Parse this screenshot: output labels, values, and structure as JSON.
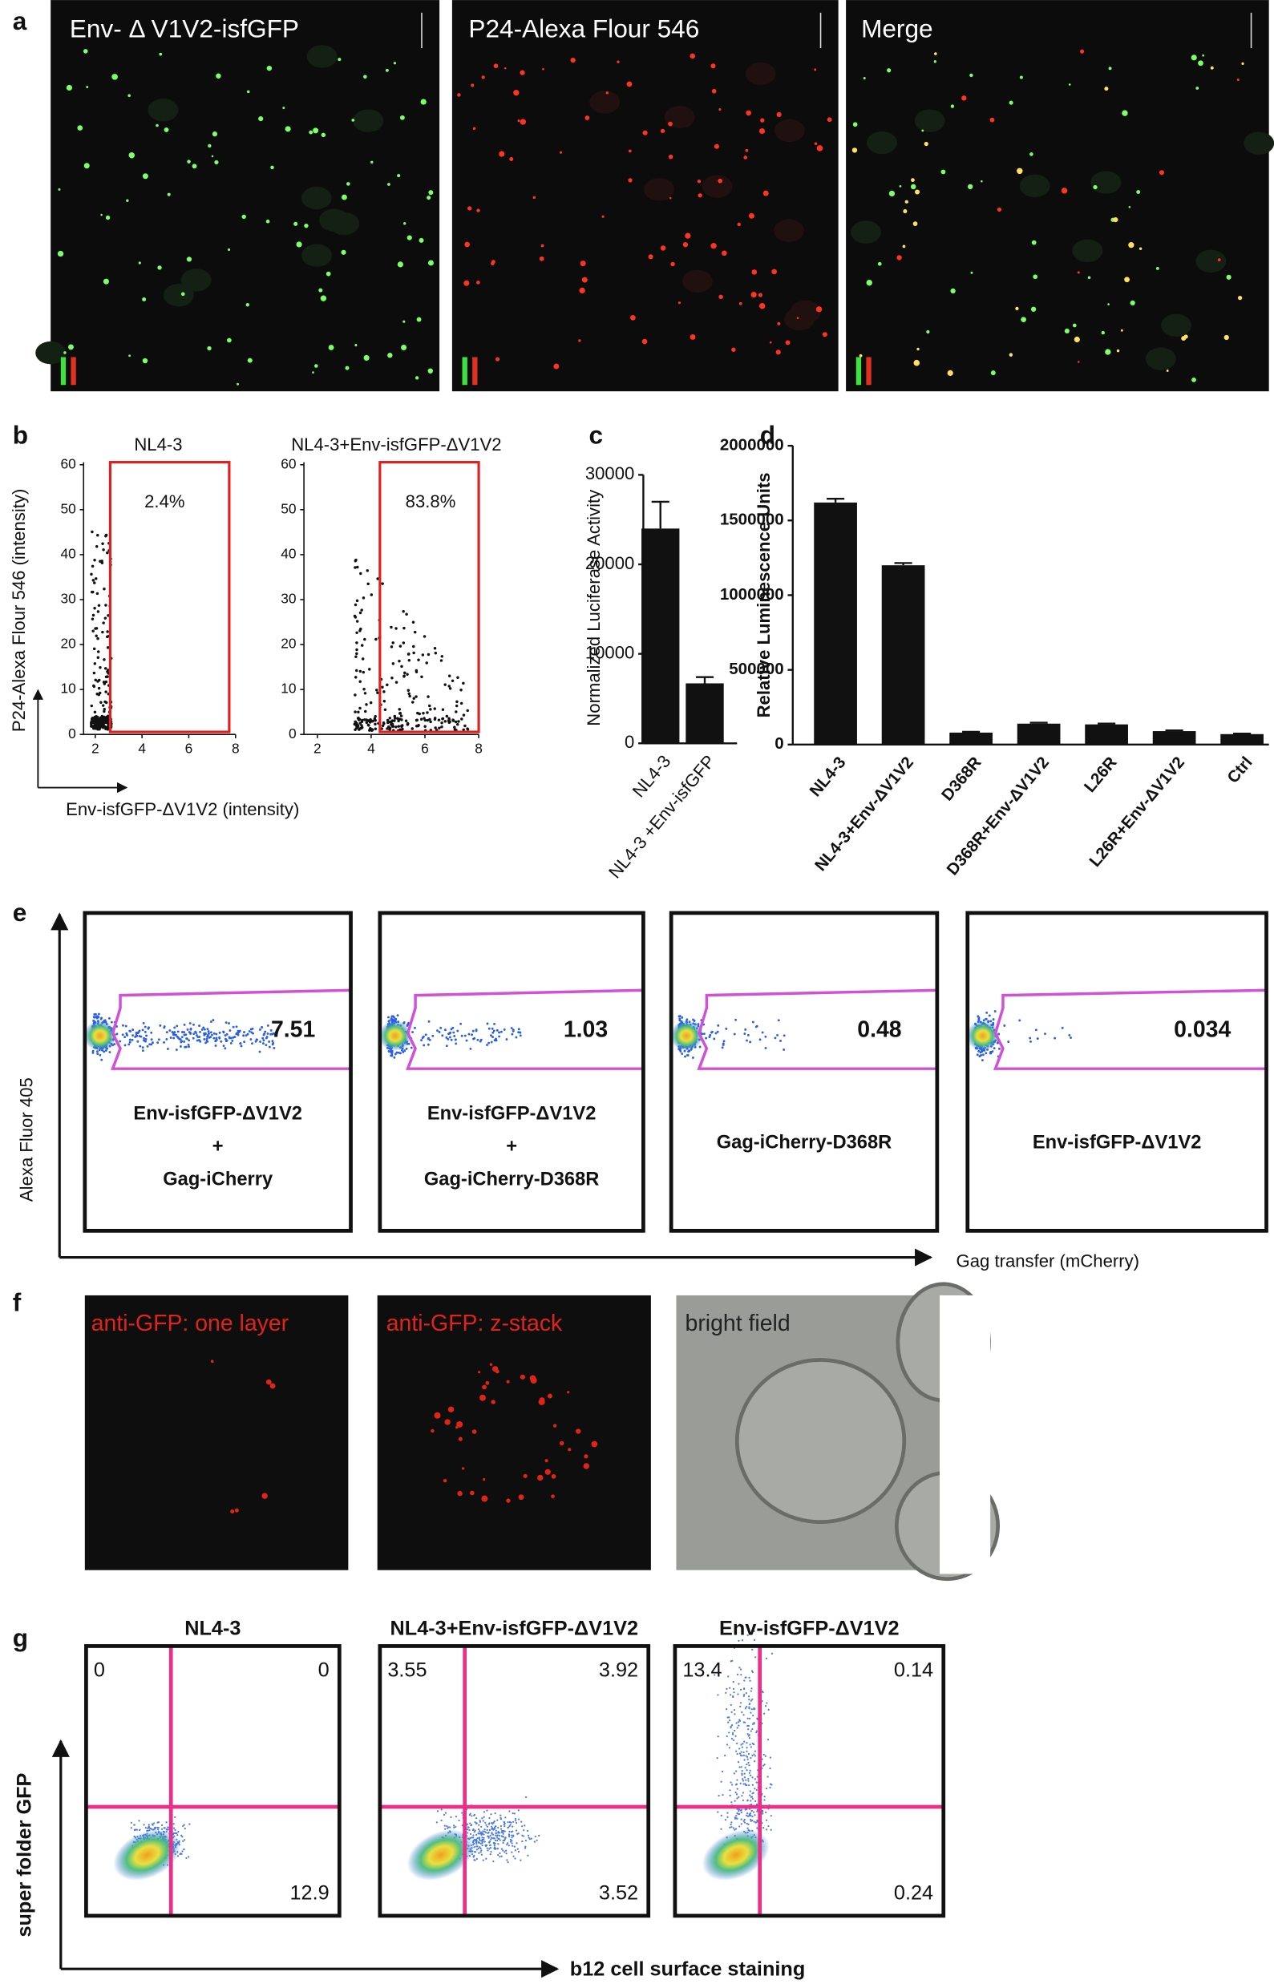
{
  "panel_letters": [
    "a",
    "b",
    "c",
    "d",
    "e",
    "f",
    "g"
  ],
  "panel_a": {
    "titles": [
      "Env- Δ V1V2-isfGFP",
      "P24-Alexa Flour 546",
      "Merge"
    ]
  },
  "panel_b": {
    "y_label": "P24-Alexa Flour 546 (intensity)",
    "x_label": "Env-isfGFP-ΔV1V2 (intensity)"
  },
  "chart_data": [
    {
      "type": "scatter",
      "title": "NL4-3",
      "gate_label": "2.4%",
      "xlim": [
        1.5,
        8
      ],
      "xticks": [
        2,
        4,
        6,
        8
      ],
      "ylim": [
        0,
        60
      ],
      "yticks": [
        0,
        10,
        20,
        30,
        40,
        50,
        60
      ],
      "gate_color": "#e02020"
    },
    {
      "type": "scatter",
      "title": "NL4-3+Env-isfGFP-ΔV1V2",
      "gate_label": "83.8%",
      "xlim": [
        1.5,
        8
      ],
      "xticks": [
        2,
        4,
        6,
        8
      ],
      "ylim": [
        0,
        60
      ],
      "yticks": [
        0,
        10,
        20,
        30,
        40,
        50,
        60
      ],
      "gate_color": "#e02020"
    },
    {
      "type": "bar",
      "y_label": "Normalized Luciferase Activity",
      "categories": [
        "NL4-3",
        "NL4-3 +Env-isfGFP"
      ],
      "values": [
        24000,
        6700
      ],
      "errors": [
        3000,
        700
      ],
      "color": "#111111",
      "ylim": [
        0,
        30000
      ],
      "yticks": [
        0,
        10000,
        20000,
        30000
      ]
    },
    {
      "type": "bar",
      "y_label": "Relative Luminescence Units",
      "categories": [
        "NL4-3",
        "NL4-3+Env-ΔV1V2",
        "D368R",
        "D368R+Env-ΔV1V2",
        "L26R",
        "L26R+Env-ΔV1V2",
        "Ctrl"
      ],
      "values": [
        1620000,
        1200000,
        80000,
        140000,
        135000,
        90000,
        70000
      ],
      "errors": [
        25000,
        15000,
        5000,
        6000,
        5000,
        5000,
        3000
      ],
      "color": "#111111",
      "ylim": [
        0,
        2000000
      ],
      "yticks": [
        0,
        500000,
        1000000,
        1500000,
        2000000
      ]
    }
  ],
  "panel_e": {
    "y_label": "Alexa Fluor 405",
    "x_label": "Gag transfer (mCherry)",
    "plots": [
      {
        "percent": 7.51,
        "lines": [
          "Env-isfGFP-ΔV1V2",
          "+",
          "Gag-iCherry"
        ]
      },
      {
        "percent": 1.03,
        "lines": [
          "Env-isfGFP-ΔV1V2",
          "+",
          "Gag-iCherry-D368R"
        ]
      },
      {
        "percent": 0.48,
        "lines": [
          "Gag-iCherry-D368R"
        ]
      },
      {
        "percent": 0.034,
        "lines": [
          "Env-isfGFP-ΔV1V2"
        ]
      }
    ]
  },
  "panel_f": {
    "titles": [
      "anti-GFP: one layer",
      "anti-GFP: z-stack",
      "bright field"
    ]
  },
  "panel_g": {
    "y_label": "super folder GFP",
    "x_label": "b12 cell surface staining",
    "plots": [
      {
        "title": "NL4-3",
        "upper_left": 0,
        "upper_right": 0,
        "lower_right": 12.9
      },
      {
        "title": "NL4-3+Env-isfGFP-ΔV1V2",
        "upper_left": 3.55,
        "upper_right": 3.92,
        "lower_right": 3.52
      },
      {
        "title": "Env-isfGFP-ΔV1V2",
        "upper_left": 13.4,
        "upper_right": 0.14,
        "lower_right": 0.24
      }
    ]
  }
}
